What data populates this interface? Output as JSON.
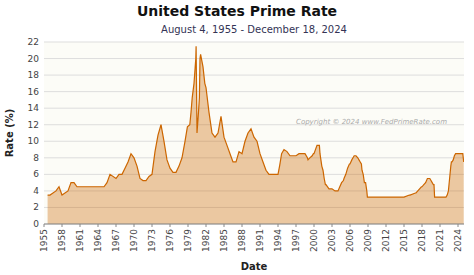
{
  "chart_data": {
    "type": "area",
    "title": "United States Prime Rate",
    "subtitle": "August 4, 1955  -  December 18, 2024",
    "xlabel": "Date",
    "ylabel": "Rate (%)",
    "annotations": [
      "Copyright © 2024 www.FedPrimeRate.com"
    ],
    "color": "#cc6600",
    "grid": true,
    "xlim": [
      1955,
      2025
    ],
    "xticks": [
      1955,
      1958,
      1961,
      1964,
      1967,
      1970,
      1973,
      1976,
      1979,
      1982,
      1985,
      1988,
      1991,
      1994,
      1997,
      2000,
      2003,
      2006,
      2009,
      2012,
      2015,
      2018,
      2021,
      2024
    ],
    "ylim": [
      0,
      22
    ],
    "yticks": [
      0,
      2,
      4,
      6,
      8,
      10,
      12,
      14,
      16,
      18,
      20,
      22
    ],
    "x": [
      1955.6,
      1956.0,
      1957.0,
      1957.5,
      1958.0,
      1959.0,
      1959.5,
      1960.0,
      1960.5,
      1961.0,
      1962.0,
      1963.0,
      1964.0,
      1965.0,
      1965.5,
      1966.0,
      1967.0,
      1967.5,
      1968.0,
      1968.5,
      1969.0,
      1969.5,
      1970.0,
      1970.5,
      1971.0,
      1971.5,
      1972.0,
      1972.5,
      1973.0,
      1973.5,
      1974.0,
      1974.5,
      1975.0,
      1975.5,
      1976.0,
      1976.5,
      1977.0,
      1977.5,
      1978.0,
      1978.5,
      1978.9,
      1979.3,
      1979.5,
      1979.7,
      1980.0,
      1980.2,
      1980.3,
      1980.35,
      1980.5,
      1980.7,
      1980.9,
      1981.0,
      1981.1,
      1981.5,
      1981.8,
      1982.0,
      1982.5,
      1982.9,
      1983.0,
      1983.5,
      1984.0,
      1984.5,
      1985.0,
      1985.5,
      1986.0,
      1986.5,
      1987.0,
      1987.5,
      1988.0,
      1988.5,
      1989.0,
      1989.5,
      1990.0,
      1990.5,
      1991.0,
      1991.5,
      1992.0,
      1992.5,
      1993.0,
      1993.5,
      1994.0,
      1994.3,
      1994.6,
      1995.0,
      1995.5,
      1996.0,
      1996.5,
      1997.0,
      1997.5,
      1998.0,
      1998.5,
      1998.9,
      1999.0,
      1999.3,
      1999.7,
      1999.9,
      2000.0,
      2000.5,
      2000.9,
      2001.0,
      2001.3,
      2001.5,
      2001.7,
      2001.9,
      2002.0,
      2002.5,
      2002.9,
      2003.0,
      2003.5,
      2004.0,
      2004.3,
      2004.6,
      2004.9,
      2005.0,
      2005.3,
      2005.6,
      2005.9,
      2006.0,
      2006.3,
      2006.5,
      2006.7,
      2007.0,
      2007.3,
      2007.5,
      2007.7,
      2007.9,
      2008.0,
      2008.2,
      2008.4,
      2008.6,
      2008.8,
      2008.9,
      2009.0,
      2010.0,
      2011.0,
      2012.0,
      2013.0,
      2014.0,
      2015.0,
      2015.9,
      2016.0,
      2016.9,
      2017.0,
      2017.3,
      2017.6,
      2017.9,
      2018.0,
      2018.3,
      2018.6,
      2018.9,
      2019.0,
      2019.3,
      2019.5,
      2019.7,
      2019.9,
      2020.0,
      2020.1,
      2020.5,
      2021.0,
      2021.9,
      2022.0,
      2022.2,
      2022.4,
      2022.6,
      2022.8,
      2022.9,
      2023.0,
      2023.2,
      2023.4,
      2023.6,
      2023.8,
      2024.0,
      2024.3,
      2024.6,
      2024.8,
      2024.95
    ],
    "values": [
      3.5,
      3.5,
      4.0,
      4.5,
      3.5,
      4.0,
      5.0,
      5.0,
      4.5,
      4.5,
      4.5,
      4.5,
      4.5,
      4.5,
      5.0,
      6.0,
      5.5,
      6.0,
      6.0,
      6.75,
      7.5,
      8.5,
      8.0,
      7.0,
      5.5,
      5.25,
      5.25,
      5.75,
      6.0,
      8.75,
      10.75,
      12.0,
      10.0,
      7.75,
      6.75,
      6.25,
      6.25,
      7.0,
      8.0,
      10.0,
      11.75,
      12.0,
      13.5,
      15.25,
      17.0,
      19.0,
      20.0,
      21.5,
      11.0,
      13.0,
      15.26,
      20.0,
      20.5,
      19.0,
      17.0,
      16.5,
      13.5,
      11.5,
      11.0,
      10.5,
      11.0,
      13.0,
      10.5,
      9.5,
      8.5,
      7.5,
      7.5,
      8.75,
      8.5,
      10.0,
      11.0,
      11.5,
      10.5,
      10.0,
      8.5,
      7.5,
      6.5,
      6.0,
      6.0,
      6.0,
      6.0,
      7.15,
      8.5,
      9.0,
      8.75,
      8.25,
      8.25,
      8.25,
      8.5,
      8.5,
      8.5,
      8.0,
      7.75,
      8.0,
      8.25,
      8.5,
      8.5,
      9.5,
      9.5,
      8.5,
      7.0,
      6.5,
      5.5,
      4.75,
      4.75,
      4.25,
      4.25,
      4.25,
      4.0,
      4.0,
      4.5,
      5.0,
      5.25,
      5.5,
      6.0,
      6.75,
      7.25,
      7.25,
      7.75,
      8.0,
      8.25,
      8.25,
      8.0,
      7.75,
      7.5,
      7.25,
      6.5,
      6.0,
      5.0,
      5.0,
      4.0,
      3.25,
      3.25,
      3.25,
      3.25,
      3.25,
      3.25,
      3.25,
      3.25,
      3.5,
      3.5,
      3.75,
      3.75,
      4.0,
      4.25,
      4.5,
      4.5,
      4.75,
      5.0,
      5.5,
      5.5,
      5.5,
      5.25,
      5.0,
      4.75,
      4.75,
      3.25,
      3.25,
      3.25,
      3.25,
      3.25,
      3.5,
      4.0,
      5.5,
      7.0,
      7.5,
      7.5,
      7.75,
      8.25,
      8.5,
      8.5,
      8.5,
      8.5,
      8.5,
      8.5,
      7.5
    ]
  }
}
